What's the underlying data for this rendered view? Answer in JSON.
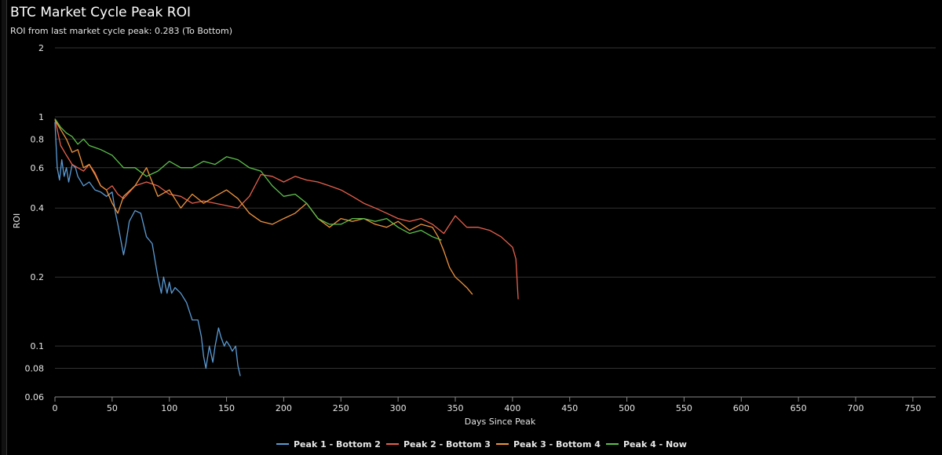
{
  "title": "BTC Market Cycle Peak ROI",
  "subtitle": "ROI from last market cycle peak: 0.283 (To Bottom)",
  "chart_data": {
    "type": "line",
    "title": "BTC Market Cycle Peak ROI",
    "subtitle": "ROI from last market cycle peak: 0.283 (To Bottom)",
    "xlabel": "Days Since Peak",
    "ylabel": "ROI",
    "y_scale": "log",
    "xlim": [
      0,
      770
    ],
    "ylim": [
      0.06,
      2
    ],
    "x_ticks": [
      0,
      50,
      100,
      150,
      200,
      250,
      300,
      350,
      400,
      450,
      500,
      550,
      600,
      650,
      700,
      750
    ],
    "y_ticks": [
      0.06,
      0.08,
      0.1,
      0.2,
      0.4,
      0.6,
      0.8,
      1,
      2
    ],
    "grid": "horizontal",
    "legend_position": "bottom",
    "series": [
      {
        "name": "Peak 1 - Bottom 2",
        "color": "#5b9bd5",
        "x": [
          0,
          2,
          4,
          6,
          8,
          10,
          12,
          15,
          18,
          20,
          25,
          30,
          35,
          40,
          45,
          50,
          53,
          55,
          57,
          60,
          62,
          65,
          70,
          75,
          80,
          85,
          90,
          93,
          95,
          98,
          100,
          102,
          105,
          110,
          115,
          120,
          125,
          128,
          130,
          132,
          135,
          138,
          140,
          143,
          145,
          148,
          150,
          153,
          155,
          158,
          160,
          162
        ],
        "y": [
          0.95,
          0.6,
          0.53,
          0.65,
          0.55,
          0.6,
          0.52,
          0.62,
          0.6,
          0.55,
          0.5,
          0.52,
          0.48,
          0.47,
          0.45,
          0.47,
          0.38,
          0.34,
          0.3,
          0.25,
          0.28,
          0.35,
          0.39,
          0.38,
          0.3,
          0.28,
          0.2,
          0.17,
          0.2,
          0.17,
          0.19,
          0.17,
          0.18,
          0.17,
          0.155,
          0.13,
          0.13,
          0.11,
          0.09,
          0.08,
          0.1,
          0.085,
          0.1,
          0.12,
          0.11,
          0.1,
          0.105,
          0.1,
          0.095,
          0.1,
          0.082,
          0.074
        ]
      },
      {
        "name": "Peak 2 - Bottom 3",
        "color": "#e8604c",
        "x": [
          0,
          5,
          10,
          15,
          20,
          25,
          30,
          35,
          40,
          45,
          50,
          55,
          60,
          70,
          80,
          90,
          100,
          110,
          120,
          130,
          140,
          150,
          160,
          170,
          180,
          190,
          200,
          210,
          220,
          230,
          240,
          250,
          260,
          270,
          280,
          290,
          300,
          310,
          320,
          330,
          340,
          350,
          360,
          370,
          380,
          390,
          400,
          403,
          405
        ],
        "y": [
          0.98,
          0.75,
          0.68,
          0.62,
          0.6,
          0.58,
          0.62,
          0.57,
          0.5,
          0.48,
          0.5,
          0.46,
          0.44,
          0.5,
          0.52,
          0.5,
          0.46,
          0.45,
          0.42,
          0.43,
          0.42,
          0.41,
          0.4,
          0.45,
          0.56,
          0.55,
          0.52,
          0.55,
          0.53,
          0.52,
          0.5,
          0.48,
          0.45,
          0.42,
          0.4,
          0.38,
          0.36,
          0.35,
          0.36,
          0.34,
          0.31,
          0.37,
          0.33,
          0.33,
          0.32,
          0.3,
          0.27,
          0.24,
          0.16
        ]
      },
      {
        "name": "Peak 3 - Bottom 4",
        "color": "#f0943c",
        "x": [
          0,
          5,
          10,
          15,
          20,
          25,
          30,
          35,
          40,
          45,
          50,
          55,
          60,
          70,
          80,
          90,
          100,
          110,
          120,
          130,
          140,
          150,
          160,
          170,
          180,
          190,
          200,
          210,
          220,
          230,
          240,
          250,
          260,
          270,
          280,
          290,
          300,
          310,
          320,
          330,
          335,
          340,
          345,
          350,
          355,
          360,
          365
        ],
        "y": [
          0.97,
          0.88,
          0.8,
          0.7,
          0.72,
          0.6,
          0.62,
          0.56,
          0.5,
          0.48,
          0.42,
          0.38,
          0.45,
          0.5,
          0.6,
          0.45,
          0.48,
          0.4,
          0.46,
          0.42,
          0.45,
          0.48,
          0.44,
          0.38,
          0.35,
          0.34,
          0.36,
          0.38,
          0.42,
          0.36,
          0.33,
          0.36,
          0.35,
          0.36,
          0.34,
          0.33,
          0.35,
          0.32,
          0.34,
          0.33,
          0.3,
          0.26,
          0.22,
          0.2,
          0.19,
          0.18,
          0.168
        ]
      },
      {
        "name": "Peak 4 - Now",
        "color": "#5cc14a",
        "x": [
          0,
          5,
          10,
          15,
          20,
          25,
          30,
          40,
          50,
          60,
          70,
          80,
          90,
          100,
          110,
          120,
          130,
          140,
          150,
          160,
          170,
          180,
          190,
          200,
          210,
          220,
          230,
          240,
          250,
          260,
          270,
          280,
          290,
          300,
          310,
          320,
          330,
          338
        ],
        "y": [
          0.98,
          0.9,
          0.85,
          0.82,
          0.76,
          0.8,
          0.75,
          0.72,
          0.68,
          0.6,
          0.6,
          0.55,
          0.58,
          0.64,
          0.6,
          0.6,
          0.64,
          0.62,
          0.67,
          0.65,
          0.6,
          0.58,
          0.5,
          0.45,
          0.46,
          0.42,
          0.36,
          0.34,
          0.34,
          0.36,
          0.36,
          0.35,
          0.36,
          0.33,
          0.31,
          0.32,
          0.3,
          0.29
        ]
      }
    ]
  }
}
